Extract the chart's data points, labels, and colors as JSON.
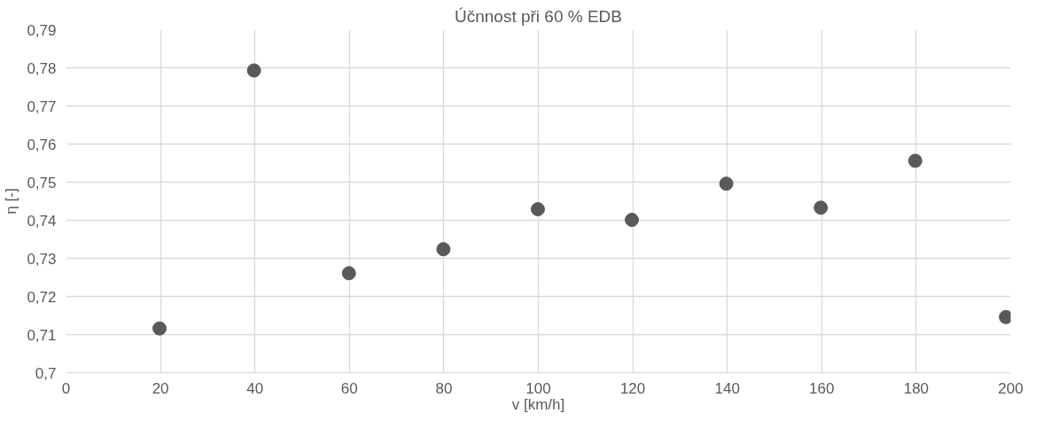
{
  "chart_data": {
    "type": "scatter",
    "title": "Účnnost při 60 % EDB",
    "xlabel": "v [km/h]",
    "ylabel": "η [-]",
    "x": [
      19.8,
      39.8,
      59.9,
      79.9,
      99.9,
      119.8,
      139.8,
      159.8,
      179.8,
      199
    ],
    "series": [
      {
        "color": "#595959",
        "values": [
          0.7116,
          0.7793,
          0.7261,
          0.7324,
          0.7429,
          0.7401,
          0.7496,
          0.7433,
          0.7556,
          0.7146
        ]
      }
    ],
    "marker": "circle",
    "grid": true,
    "xlim": [
      0,
      200
    ],
    "xticks": [
      0,
      20,
      40,
      60,
      80,
      100,
      120,
      140,
      160,
      180,
      200
    ],
    "ylim": [
      0.7,
      0.79
    ],
    "yticks": [
      {
        "value": 0.7,
        "label": "0,7"
      },
      {
        "value": 0.71,
        "label": "0,71"
      },
      {
        "value": 0.72,
        "label": "0,72"
      },
      {
        "value": 0.73,
        "label": "0,73"
      },
      {
        "value": 0.74,
        "label": "0,74"
      },
      {
        "value": 0.75,
        "label": "0,75"
      },
      {
        "value": 0.76,
        "label": "0,76"
      },
      {
        "value": 0.77,
        "label": "0,77"
      },
      {
        "value": 0.78,
        "label": "0,78"
      },
      {
        "value": 0.79,
        "label": "0,79"
      }
    ]
  }
}
